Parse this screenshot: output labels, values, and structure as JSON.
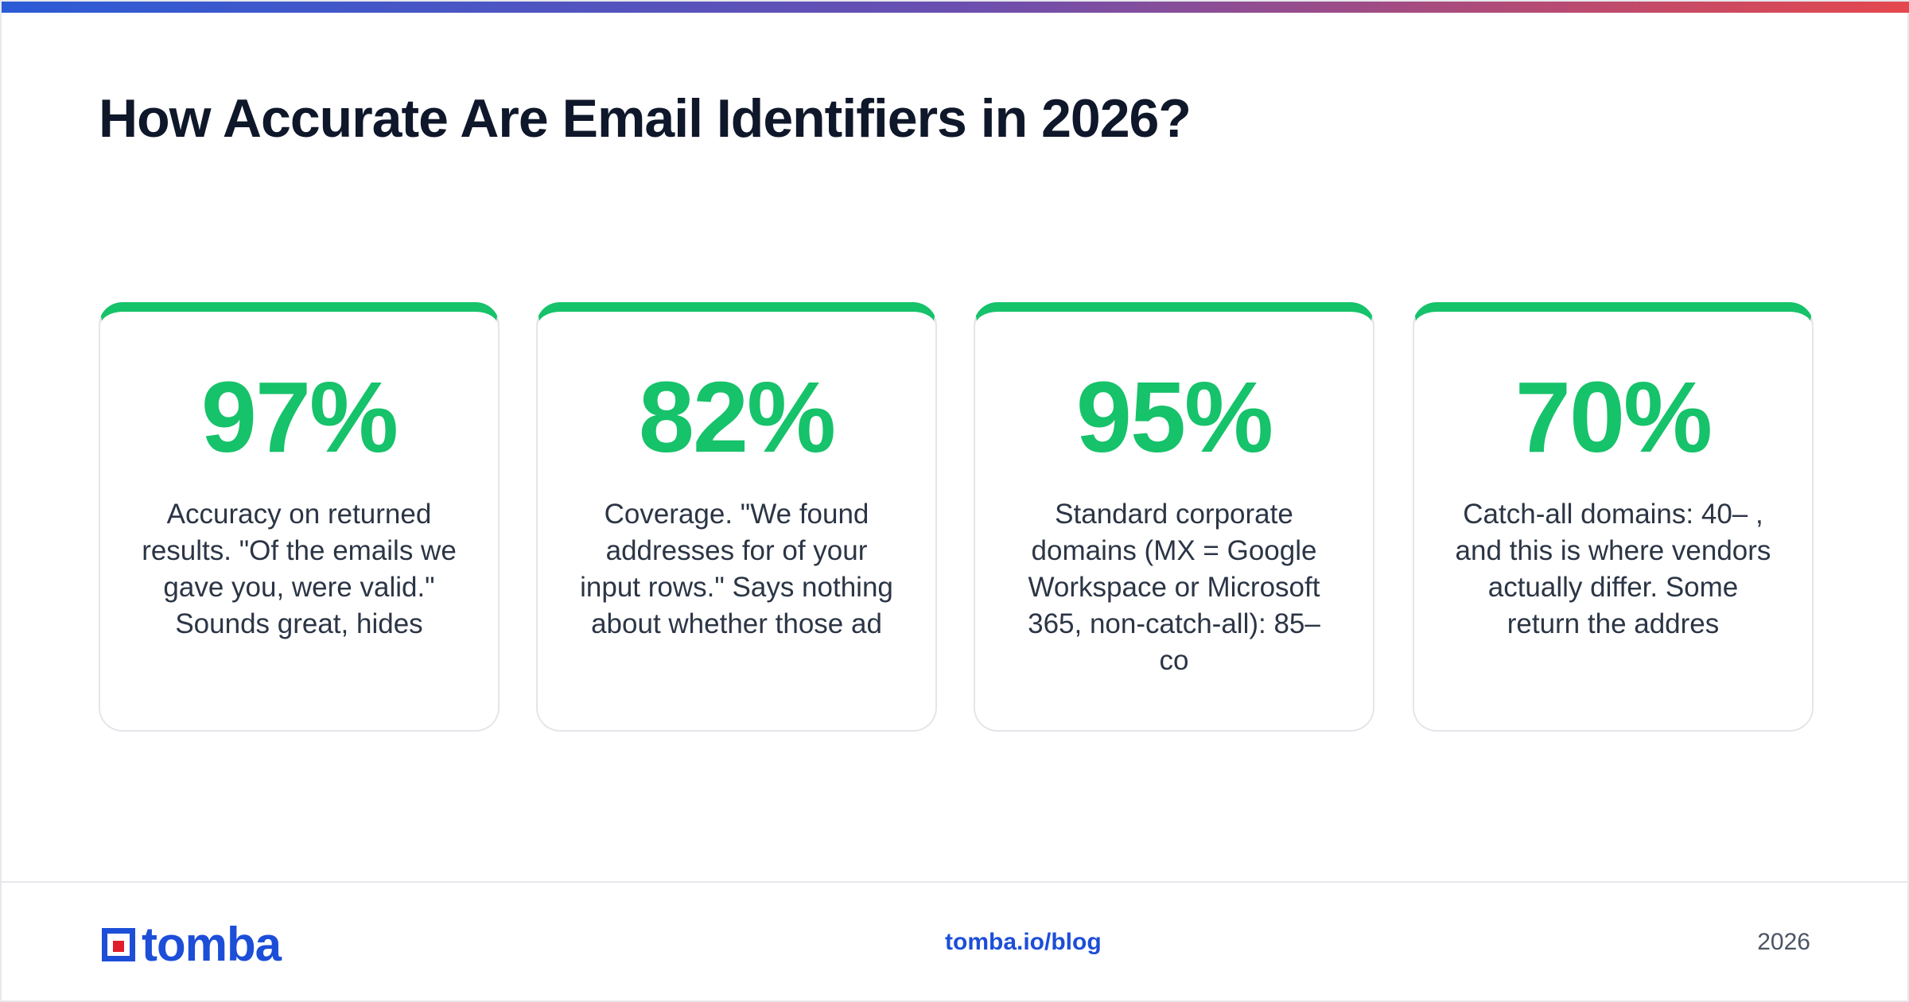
{
  "title": "How Accurate Are Email Identifiers in 2026?",
  "colors": {
    "accent": "#16c26a",
    "brand": "#1d4ed8",
    "title": "#0f172a",
    "logo_square": "#e11d2a"
  },
  "cards": [
    {
      "stat": "97%",
      "description": "Accuracy on returned results. \"Of the emails we gave you, were valid.\" Sounds great, hides"
    },
    {
      "stat": "82%",
      "description": "Coverage. \"We found addresses for of your input rows.\" Says nothing about whether those ad"
    },
    {
      "stat": "95%",
      "description": "Standard corporate domains (MX = Google Workspace or Microsoft 365, non-catch-all): 85– co"
    },
    {
      "stat": "70%",
      "description": "Catch-all domains: 40– , and this is where vendors actually differ. Some return the addres"
    }
  ],
  "footer": {
    "logo_text": "tomba",
    "link": "tomba.io/blog",
    "year": "2026"
  }
}
